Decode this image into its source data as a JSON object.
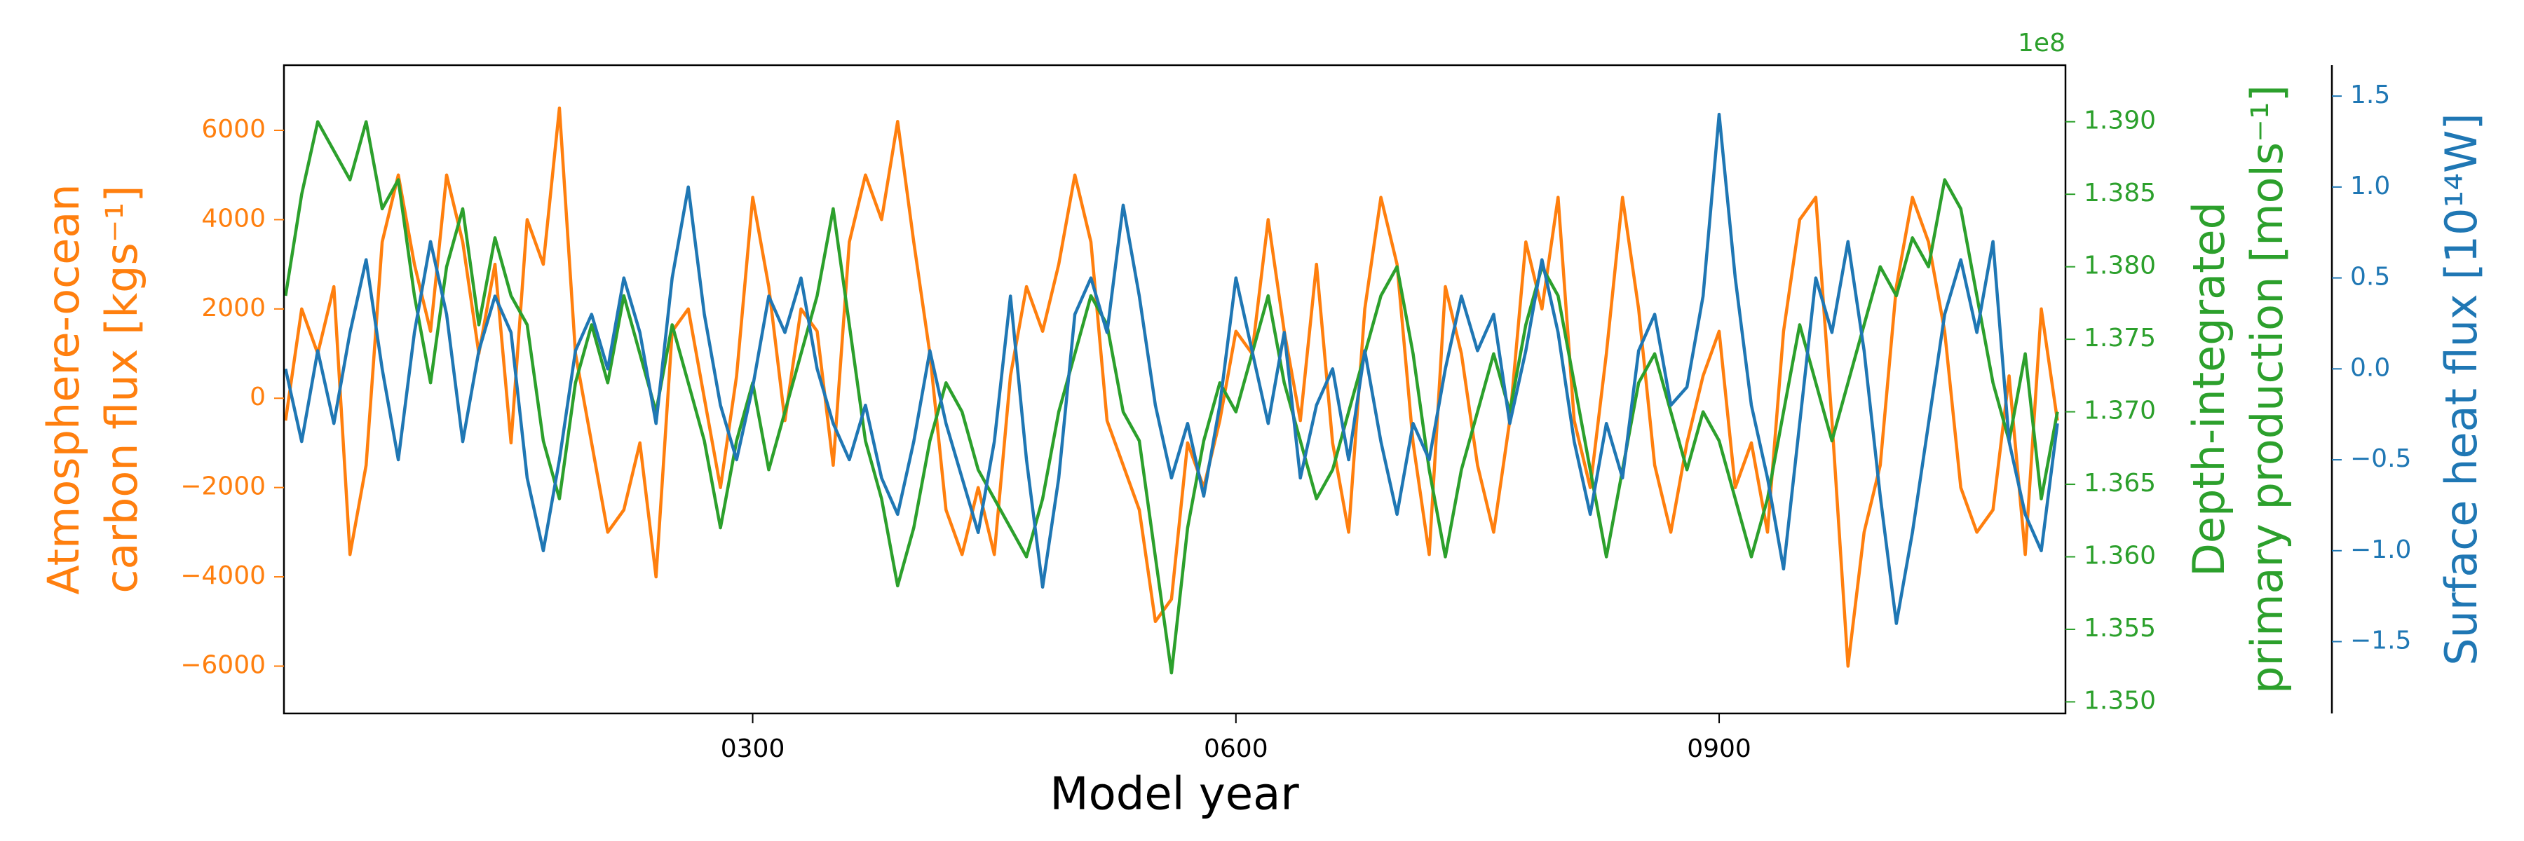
{
  "chart_data": {
    "type": "line",
    "xlabel": "Model year",
    "x": [
      10,
      20,
      30,
      40,
      50,
      60,
      70,
      80,
      90,
      100,
      110,
      120,
      130,
      140,
      150,
      160,
      170,
      180,
      190,
      200,
      210,
      220,
      230,
      240,
      250,
      260,
      270,
      280,
      290,
      300,
      310,
      320,
      330,
      340,
      350,
      360,
      370,
      380,
      390,
      400,
      410,
      420,
      430,
      440,
      450,
      460,
      470,
      480,
      490,
      500,
      510,
      520,
      530,
      540,
      550,
      560,
      570,
      580,
      590,
      600,
      610,
      620,
      630,
      640,
      650,
      660,
      670,
      680,
      690,
      700,
      710,
      720,
      730,
      740,
      750,
      760,
      770,
      780,
      790,
      800,
      810,
      820,
      830,
      840,
      850,
      860,
      870,
      880,
      890,
      900,
      910,
      920,
      930,
      940,
      950,
      960,
      970,
      980,
      990,
      1000,
      1010,
      1020,
      1030,
      1040,
      1050,
      1060,
      1070,
      1080,
      1090,
      1100,
      1110
    ],
    "xlim": [
      9,
      1115
    ],
    "xticks": [
      {
        "value": 300,
        "label": "0300"
      },
      {
        "value": 600,
        "label": "0600"
      },
      {
        "value": 900,
        "label": "0900"
      }
    ],
    "ylabel": [
      "Atmosphere-ocean",
      "carbon flux [kgs⁻¹]"
    ],
    "ylim": [
      -7060,
      7460
    ],
    "yticks": [
      {
        "value": -6000,
        "label": "−6000"
      },
      {
        "value": -4000,
        "label": "−4000"
      },
      {
        "value": -2000,
        "label": "−2000"
      },
      0,
      2000,
      4000,
      6000
    ],
    "ycolor": "#ff7f0e",
    "y2label": [
      "Depth-integrated",
      "primary production [mols⁻¹]"
    ],
    "y2offset": "1e8",
    "y2lim": [
      1.3492,
      1.3939
    ],
    "y2ticks": [
      {
        "value": 1.35,
        "label": "1.350"
      },
      1.355,
      {
        "value": 1.36,
        "label": "1.360"
      },
      1.365,
      {
        "value": 1.37,
        "label": "1.370"
      },
      1.375,
      {
        "value": 1.38,
        "label": "1.380"
      },
      1.385,
      {
        "value": 1.39,
        "label": "1.390"
      }
    ],
    "y2color": "#2ca02c",
    "y3label": "Surface heat flux [10¹⁴W]",
    "y3lim": [
      -1.895,
      1.67
    ],
    "y3ticks": [
      {
        "value": -1.5,
        "label": "−1.5"
      },
      {
        "value": -1,
        "label": "−1.0"
      },
      {
        "value": -0.5,
        "label": "−0.5"
      },
      {
        "value": 0,
        "label": "0.0"
      },
      0.5,
      {
        "value": 1,
        "label": "1.0"
      },
      1.5
    ],
    "y3color": "#1f77b4",
    "series": [
      {
        "color": "#ff7f0e",
        "axis": "y",
        "values": [
          -500,
          2000,
          1000,
          2500,
          -3500,
          -1500,
          3500,
          5000,
          3000,
          1500,
          5000,
          3500,
          1000,
          3000,
          -1000,
          4000,
          3000,
          6500,
          1000,
          -1000,
          -3000,
          -2500,
          -1000,
          -4000,
          1500,
          2000,
          0,
          -2000,
          500,
          4500,
          2500,
          -500,
          2000,
          1500,
          -1500,
          3500,
          5000,
          4000,
          6200,
          3500,
          1000,
          -2500,
          -3500,
          -2000,
          -3500,
          500,
          2500,
          1500,
          3000,
          5000,
          3500,
          -500,
          -1500,
          -2500,
          -5000,
          -4500,
          -1000,
          -2000,
          -500,
          1500,
          1000,
          4000,
          1500,
          -500,
          3000,
          -1000,
          -3000,
          2000,
          4500,
          3000,
          -1000,
          -3500,
          2500,
          1000,
          -1500,
          -3000,
          -500,
          3500,
          2000,
          4500,
          -500,
          -2000,
          1000,
          4500,
          2000,
          -1500,
          -3000,
          -1000,
          500,
          1500,
          -2000,
          -1000,
          -3000,
          1500,
          4000,
          4500,
          -500,
          -6000,
          -3000,
          -1500,
          2500,
          4500,
          3500,
          1500,
          -2000,
          -3000,
          -2500,
          500,
          -3500,
          2000,
          -500
        ]
      },
      {
        "color": "#2ca02c",
        "axis": "y2",
        "values": [
          1.378,
          1.385,
          1.39,
          1.388,
          1.386,
          1.39,
          1.384,
          1.386,
          1.378,
          1.372,
          1.38,
          1.384,
          1.376,
          1.382,
          1.378,
          1.376,
          1.368,
          1.364,
          1.372,
          1.376,
          1.372,
          1.378,
          1.374,
          1.37,
          1.376,
          1.372,
          1.368,
          1.362,
          1.368,
          1.372,
          1.366,
          1.37,
          1.374,
          1.378,
          1.384,
          1.376,
          1.368,
          1.364,
          1.358,
          1.362,
          1.368,
          1.372,
          1.37,
          1.366,
          1.364,
          1.362,
          1.36,
          1.364,
          1.37,
          1.374,
          1.378,
          1.376,
          1.37,
          1.368,
          1.36,
          1.352,
          1.362,
          1.368,
          1.372,
          1.37,
          1.374,
          1.378,
          1.372,
          1.368,
          1.364,
          1.366,
          1.37,
          1.374,
          1.378,
          1.38,
          1.374,
          1.366,
          1.36,
          1.366,
          1.37,
          1.374,
          1.37,
          1.376,
          1.38,
          1.378,
          1.372,
          1.366,
          1.36,
          1.366,
          1.372,
          1.374,
          1.37,
          1.366,
          1.37,
          1.368,
          1.364,
          1.36,
          1.364,
          1.37,
          1.376,
          1.372,
          1.368,
          1.372,
          1.376,
          1.38,
          1.378,
          1.382,
          1.38,
          1.386,
          1.384,
          1.378,
          1.372,
          1.368,
          1.374,
          1.364,
          1.37
        ]
      },
      {
        "color": "#1f77b4",
        "axis": "y3",
        "values": [
          0.0,
          -0.4,
          0.1,
          -0.3,
          0.2,
          0.6,
          0.0,
          -0.5,
          0.2,
          0.7,
          0.3,
          -0.4,
          0.1,
          0.4,
          0.2,
          -0.6,
          -1.0,
          -0.5,
          0.1,
          0.3,
          0.0,
          0.5,
          0.2,
          -0.3,
          0.5,
          1.0,
          0.3,
          -0.2,
          -0.5,
          -0.1,
          0.4,
          0.2,
          0.5,
          0.0,
          -0.3,
          -0.5,
          -0.2,
          -0.6,
          -0.8,
          -0.4,
          0.1,
          -0.3,
          -0.6,
          -0.9,
          -0.4,
          0.4,
          -0.5,
          -1.2,
          -0.6,
          0.3,
          0.5,
          0.2,
          0.9,
          0.4,
          -0.2,
          -0.6,
          -0.3,
          -0.7,
          -0.2,
          0.5,
          0.1,
          -0.3,
          0.2,
          -0.6,
          -0.2,
          0.0,
          -0.5,
          0.1,
          -0.4,
          -0.8,
          -0.3,
          -0.5,
          0.0,
          0.4,
          0.1,
          0.3,
          -0.3,
          0.1,
          0.6,
          0.2,
          -0.4,
          -0.8,
          -0.3,
          -0.6,
          0.1,
          0.3,
          -0.2,
          -0.1,
          0.4,
          1.4,
          0.5,
          -0.2,
          -0.6,
          -1.1,
          -0.3,
          0.5,
          0.2,
          0.7,
          0.1,
          -0.7,
          -1.4,
          -0.9,
          -0.3,
          0.3,
          0.6,
          0.2,
          0.7,
          -0.4,
          -0.8,
          -1.0,
          -0.3
        ]
      }
    ]
  }
}
